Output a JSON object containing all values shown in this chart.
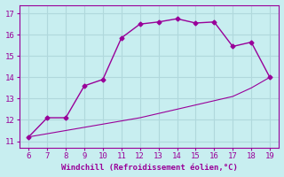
{
  "xlabel": "Windchill (Refroidissement éolien,°C)",
  "xlim": [
    5.5,
    19.5
  ],
  "ylim": [
    10.7,
    17.4
  ],
  "xticks": [
    6,
    7,
    8,
    9,
    10,
    11,
    12,
    13,
    14,
    15,
    16,
    17,
    18,
    19
  ],
  "yticks": [
    11,
    12,
    13,
    14,
    15,
    16,
    17
  ],
  "line1_x": [
    6,
    7,
    8,
    9,
    10,
    11,
    12,
    13,
    14,
    15,
    16,
    17,
    18,
    19
  ],
  "line1_y": [
    11.2,
    12.1,
    12.1,
    13.6,
    13.9,
    15.85,
    16.5,
    16.6,
    16.75,
    16.55,
    16.6,
    15.45,
    15.65,
    14.0
  ],
  "line2_x": [
    6,
    7,
    8,
    9,
    10,
    11,
    12,
    13,
    14,
    15,
    16,
    17,
    18,
    19
  ],
  "line2_y": [
    11.2,
    11.35,
    11.5,
    11.65,
    11.8,
    11.95,
    12.1,
    12.3,
    12.5,
    12.7,
    12.9,
    13.1,
    13.5,
    14.0
  ],
  "line_color": "#990099",
  "bg_color": "#c8eef0",
  "grid_color": "#b0d8dc",
  "tick_color": "#990099",
  "label_color": "#990099",
  "spine_color": "#990099"
}
